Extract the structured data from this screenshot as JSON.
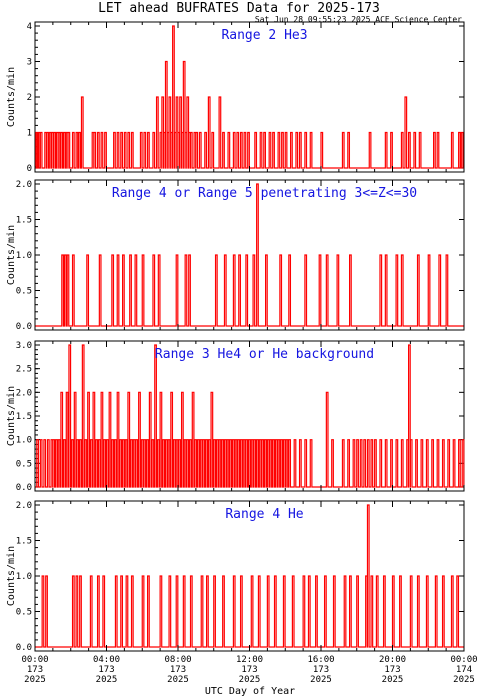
{
  "title": "LET ahead BUFRATES Data for 2025-173",
  "timestamp": "Sat Jun 28 09:55:23 2025 ACE Science Center",
  "xlabel": "UTC Day of Year",
  "x_ticks": [
    {
      "time": "00:00",
      "day": "173",
      "year": "2025"
    },
    {
      "time": "04:00",
      "day": "173",
      "year": "2025"
    },
    {
      "time": "08:00",
      "day": "173",
      "year": "2025"
    },
    {
      "time": "12:00",
      "day": "173",
      "year": "2025"
    },
    {
      "time": "16:00",
      "day": "173",
      "year": "2025"
    },
    {
      "time": "20:00",
      "day": "173",
      "year": "2025"
    },
    {
      "time": "00:00",
      "day": "174",
      "year": "2025"
    }
  ],
  "colors": {
    "data": "#ff0000",
    "label": "#1515e0",
    "axis": "#000000"
  },
  "chart_data": [
    {
      "type": "line",
      "label": "Range 2 He3",
      "ylabel": "Counts/min",
      "ylim": [
        0,
        4
      ],
      "yticks": [
        "0",
        "1",
        "2",
        "3",
        "4"
      ],
      "xlim_hours": [
        0,
        24
      ],
      "spikes": [
        [
          0.05,
          1
        ],
        [
          0.12,
          1
        ],
        [
          0.2,
          1
        ],
        [
          0.3,
          1
        ],
        [
          0.55,
          1
        ],
        [
          0.65,
          1
        ],
        [
          0.8,
          1
        ],
        [
          0.95,
          1
        ],
        [
          1.05,
          1
        ],
        [
          1.2,
          1
        ],
        [
          1.3,
          1
        ],
        [
          1.45,
          1
        ],
        [
          1.6,
          1
        ],
        [
          1.75,
          1
        ],
        [
          1.85,
          1
        ],
        [
          2.1,
          1
        ],
        [
          2.3,
          1
        ],
        [
          2.45,
          1
        ],
        [
          2.6,
          2
        ],
        [
          3.2,
          1
        ],
        [
          3.3,
          1
        ],
        [
          3.5,
          1
        ],
        [
          3.7,
          1
        ],
        [
          3.9,
          1
        ],
        [
          4.4,
          1
        ],
        [
          4.6,
          1
        ],
        [
          4.8,
          1
        ],
        [
          5.0,
          1
        ],
        [
          5.2,
          1
        ],
        [
          5.4,
          1
        ],
        [
          5.9,
          1
        ],
        [
          6.1,
          1
        ],
        [
          6.3,
          1
        ],
        [
          6.6,
          1
        ],
        [
          6.8,
          2
        ],
        [
          7.0,
          1
        ],
        [
          7.1,
          2
        ],
        [
          7.2,
          1
        ],
        [
          7.3,
          3
        ],
        [
          7.4,
          1
        ],
        [
          7.5,
          2
        ],
        [
          7.6,
          1
        ],
        [
          7.7,
          4
        ],
        [
          7.8,
          1
        ],
        [
          7.9,
          2
        ],
        [
          8.0,
          1
        ],
        [
          8.1,
          2
        ],
        [
          8.2,
          1
        ],
        [
          8.3,
          3
        ],
        [
          8.4,
          1
        ],
        [
          8.5,
          2
        ],
        [
          8.6,
          1
        ],
        [
          8.7,
          1
        ],
        [
          8.9,
          1
        ],
        [
          9.0,
          1
        ],
        [
          9.2,
          1
        ],
        [
          9.5,
          1
        ],
        [
          9.7,
          2
        ],
        [
          9.9,
          1
        ],
        [
          10.3,
          2
        ],
        [
          10.5,
          1
        ],
        [
          10.8,
          1
        ],
        [
          11.1,
          1
        ],
        [
          11.3,
          1
        ],
        [
          11.5,
          1
        ],
        [
          11.7,
          1
        ],
        [
          11.9,
          1
        ],
        [
          12.3,
          1
        ],
        [
          12.6,
          1
        ],
        [
          12.8,
          1
        ],
        [
          13.1,
          1
        ],
        [
          13.3,
          1
        ],
        [
          13.6,
          1
        ],
        [
          13.8,
          1
        ],
        [
          14.0,
          1
        ],
        [
          14.3,
          1
        ],
        [
          14.6,
          1
        ],
        [
          14.8,
          1
        ],
        [
          15.1,
          1
        ],
        [
          15.4,
          1
        ],
        [
          16.0,
          1
        ],
        [
          17.2,
          1
        ],
        [
          17.5,
          1
        ],
        [
          18.7,
          1
        ],
        [
          19.6,
          1
        ],
        [
          19.9,
          1
        ],
        [
          20.5,
          1
        ],
        [
          20.7,
          2
        ],
        [
          20.9,
          1
        ],
        [
          21.2,
          1
        ],
        [
          21.5,
          1
        ],
        [
          22.3,
          1
        ],
        [
          22.5,
          1
        ],
        [
          23.3,
          1
        ],
        [
          23.7,
          1
        ],
        [
          23.85,
          1
        ]
      ]
    },
    {
      "type": "line",
      "label": "Range 4 or Range 5 penetrating 3<=Z<=30",
      "ylabel": "Counts/min",
      "ylim": [
        0,
        2
      ],
      "yticks": [
        "0.0",
        "0.5",
        "1.0",
        "1.5",
        "2.0"
      ],
      "xlim_hours": [
        0,
        24
      ],
      "spikes": [
        [
          1.5,
          1
        ],
        [
          1.65,
          1
        ],
        [
          1.8,
          1
        ],
        [
          2.1,
          1
        ],
        [
          2.9,
          1
        ],
        [
          3.6,
          1
        ],
        [
          4.3,
          1
        ],
        [
          4.6,
          1
        ],
        [
          4.9,
          1
        ],
        [
          5.3,
          1
        ],
        [
          5.6,
          1
        ],
        [
          6.0,
          1
        ],
        [
          6.6,
          1
        ],
        [
          6.9,
          1
        ],
        [
          7.9,
          1
        ],
        [
          8.4,
          1
        ],
        [
          8.6,
          1
        ],
        [
          10.1,
          1
        ],
        [
          10.6,
          1
        ],
        [
          11.1,
          1
        ],
        [
          11.4,
          1
        ],
        [
          11.8,
          1
        ],
        [
          12.2,
          1
        ],
        [
          12.4,
          2
        ],
        [
          12.9,
          1
        ],
        [
          13.7,
          1
        ],
        [
          14.2,
          1
        ],
        [
          15.1,
          1
        ],
        [
          15.9,
          1
        ],
        [
          16.3,
          1
        ],
        [
          16.9,
          1
        ],
        [
          17.6,
          1
        ],
        [
          19.3,
          1
        ],
        [
          19.6,
          1
        ],
        [
          20.2,
          1
        ],
        [
          20.5,
          1
        ],
        [
          21.4,
          1
        ],
        [
          22.0,
          1
        ],
        [
          22.6,
          1
        ],
        [
          23.0,
          1
        ]
      ]
    },
    {
      "type": "line",
      "label": "Range 3 He4 or He background",
      "ylabel": "Counts/min",
      "ylim": [
        0,
        3
      ],
      "yticks": [
        "0.0",
        "0.5",
        "1.0",
        "1.5",
        "2.0",
        "2.5",
        "3.0"
      ],
      "xlim_hours": [
        0,
        24
      ],
      "spikes": [
        [
          0.1,
          1
        ],
        [
          0.3,
          1
        ],
        [
          0.5,
          1
        ],
        [
          0.7,
          1
        ],
        [
          0.9,
          1
        ],
        [
          1.0,
          1
        ],
        [
          1.15,
          1
        ],
        [
          1.3,
          1
        ],
        [
          1.45,
          2
        ],
        [
          1.6,
          1
        ],
        [
          1.75,
          2
        ],
        [
          1.9,
          3
        ],
        [
          2.05,
          1
        ],
        [
          2.2,
          2
        ],
        [
          2.35,
          1
        ],
        [
          2.5,
          1
        ],
        [
          2.65,
          3
        ],
        [
          2.8,
          1
        ],
        [
          2.95,
          2
        ],
        [
          3.1,
          1
        ],
        [
          3.25,
          2
        ],
        [
          3.4,
          1
        ],
        [
          3.55,
          1
        ],
        [
          3.7,
          2
        ],
        [
          3.85,
          1
        ],
        [
          4.0,
          1
        ],
        [
          4.15,
          2
        ],
        [
          4.3,
          1
        ],
        [
          4.45,
          1
        ],
        [
          4.6,
          2
        ],
        [
          4.75,
          1
        ],
        [
          4.9,
          1
        ],
        [
          5.05,
          1
        ],
        [
          5.2,
          2
        ],
        [
          5.35,
          1
        ],
        [
          5.5,
          1
        ],
        [
          5.65,
          1
        ],
        [
          5.8,
          2
        ],
        [
          5.95,
          1
        ],
        [
          6.1,
          1
        ],
        [
          6.25,
          1
        ],
        [
          6.4,
          2
        ],
        [
          6.55,
          1
        ],
        [
          6.7,
          3
        ],
        [
          6.85,
          1
        ],
        [
          7.0,
          2
        ],
        [
          7.15,
          1
        ],
        [
          7.3,
          1
        ],
        [
          7.45,
          1
        ],
        [
          7.6,
          2
        ],
        [
          7.75,
          1
        ],
        [
          7.9,
          1
        ],
        [
          8.05,
          1
        ],
        [
          8.2,
          2
        ],
        [
          8.35,
          1
        ],
        [
          8.5,
          1
        ],
        [
          8.65,
          1
        ],
        [
          8.8,
          2
        ],
        [
          8.95,
          1
        ],
        [
          9.1,
          1
        ],
        [
          9.25,
          1
        ],
        [
          9.4,
          1
        ],
        [
          9.55,
          1
        ],
        [
          9.7,
          1
        ],
        [
          9.85,
          2
        ],
        [
          10.0,
          1
        ],
        [
          10.15,
          1
        ],
        [
          10.3,
          1
        ],
        [
          10.45,
          1
        ],
        [
          10.6,
          1
        ],
        [
          10.75,
          1
        ],
        [
          10.9,
          1
        ],
        [
          11.05,
          1
        ],
        [
          11.2,
          1
        ],
        [
          11.35,
          1
        ],
        [
          11.5,
          1
        ],
        [
          11.65,
          1
        ],
        [
          11.8,
          1
        ],
        [
          11.95,
          1
        ],
        [
          12.1,
          1
        ],
        [
          12.25,
          1
        ],
        [
          12.4,
          1
        ],
        [
          12.55,
          1
        ],
        [
          12.7,
          1
        ],
        [
          12.85,
          1
        ],
        [
          13.0,
          1
        ],
        [
          13.15,
          1
        ],
        [
          13.3,
          1
        ],
        [
          13.45,
          1
        ],
        [
          13.6,
          1
        ],
        [
          13.75,
          1
        ],
        [
          13.9,
          1
        ],
        [
          14.05,
          1
        ],
        [
          14.2,
          1
        ],
        [
          14.5,
          1
        ],
        [
          14.8,
          1
        ],
        [
          15.1,
          1
        ],
        [
          15.4,
          1
        ],
        [
          16.3,
          2
        ],
        [
          16.6,
          1
        ],
        [
          17.2,
          1
        ],
        [
          17.5,
          1
        ],
        [
          17.8,
          1
        ],
        [
          18.0,
          1
        ],
        [
          18.2,
          1
        ],
        [
          18.4,
          1
        ],
        [
          18.6,
          1
        ],
        [
          18.8,
          1
        ],
        [
          19.0,
          1
        ],
        [
          19.3,
          1
        ],
        [
          19.6,
          1
        ],
        [
          19.9,
          1
        ],
        [
          20.2,
          1
        ],
        [
          20.5,
          1
        ],
        [
          20.8,
          1
        ],
        [
          20.9,
          3
        ],
        [
          21.0,
          1
        ],
        [
          21.3,
          1
        ],
        [
          21.6,
          1
        ],
        [
          21.9,
          1
        ],
        [
          22.2,
          1
        ],
        [
          22.5,
          1
        ],
        [
          22.8,
          1
        ],
        [
          23.1,
          1
        ],
        [
          23.4,
          1
        ],
        [
          23.7,
          1
        ],
        [
          23.9,
          1
        ]
      ]
    },
    {
      "type": "line",
      "label": "Range 4 He",
      "ylabel": "Counts/min",
      "ylim": [
        0,
        2
      ],
      "yticks": [
        "0.0",
        "0.5",
        "1.0",
        "1.5",
        "2.0"
      ],
      "xlim_hours": [
        0,
        24
      ],
      "spikes": [
        [
          0.4,
          1
        ],
        [
          0.6,
          1
        ],
        [
          2.1,
          1
        ],
        [
          2.3,
          1
        ],
        [
          2.5,
          1
        ],
        [
          3.1,
          1
        ],
        [
          3.5,
          1
        ],
        [
          3.8,
          1
        ],
        [
          4.5,
          1
        ],
        [
          4.8,
          1
        ],
        [
          5.1,
          1
        ],
        [
          5.4,
          1
        ],
        [
          6.0,
          1
        ],
        [
          6.3,
          1
        ],
        [
          7.0,
          1
        ],
        [
          7.5,
          1
        ],
        [
          7.9,
          1
        ],
        [
          8.3,
          1
        ],
        [
          8.7,
          1
        ],
        [
          9.3,
          1
        ],
        [
          9.6,
          1
        ],
        [
          10.0,
          1
        ],
        [
          10.5,
          1
        ],
        [
          11.1,
          1
        ],
        [
          11.5,
          1
        ],
        [
          12.1,
          1
        ],
        [
          12.5,
          1
        ],
        [
          13.0,
          1
        ],
        [
          13.4,
          1
        ],
        [
          13.9,
          1
        ],
        [
          14.4,
          1
        ],
        [
          15.0,
          1
        ],
        [
          15.3,
          1
        ],
        [
          15.7,
          1
        ],
        [
          16.2,
          1
        ],
        [
          16.7,
          1
        ],
        [
          17.3,
          1
        ],
        [
          17.6,
          1
        ],
        [
          18.0,
          1
        ],
        [
          18.5,
          1
        ],
        [
          18.6,
          2
        ],
        [
          18.8,
          1
        ],
        [
          19.1,
          1
        ],
        [
          19.5,
          1
        ],
        [
          20.0,
          1
        ],
        [
          20.4,
          1
        ],
        [
          21.0,
          1
        ],
        [
          21.4,
          1
        ],
        [
          21.9,
          1
        ],
        [
          22.4,
          1
        ],
        [
          22.8,
          1
        ],
        [
          23.3,
          1
        ],
        [
          23.6,
          1
        ]
      ]
    }
  ]
}
